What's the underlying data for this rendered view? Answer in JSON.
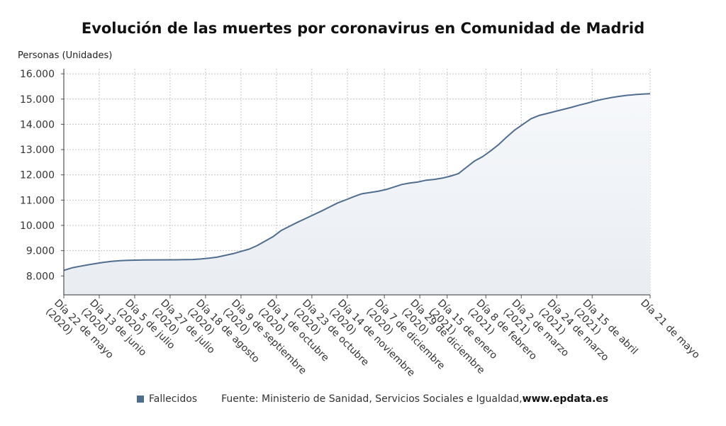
{
  "chart_data": {
    "type": "area",
    "title": "Evolución de las muertes por coronavirus en Comunidad de Madrid",
    "ylabel": "Personas (Unidades)",
    "xlabel": "",
    "ylim": [
      7250,
      16200
    ],
    "yticks": [
      8000,
      9000,
      10000,
      11000,
      12000,
      13000,
      14000,
      15000,
      16000
    ],
    "ytick_labels": [
      "8.000",
      "9.000",
      "10.000",
      "11.000",
      "12.000",
      "13.000",
      "14.000",
      "15.000",
      "16.000"
    ],
    "x_range_days": [
      0,
      364
    ],
    "xticks": [
      {
        "day": 0,
        "line1": "Día 22 de mayo",
        "line2": "(2020)"
      },
      {
        "day": 22,
        "line1": "Día 13 de junio",
        "line2": "(2020)"
      },
      {
        "day": 44,
        "line1": "Día 5 de julio",
        "line2": "(2020)"
      },
      {
        "day": 66,
        "line1": "Día 27 de julio",
        "line2": "(2020)"
      },
      {
        "day": 88,
        "line1": "Día 18 de agosto",
        "line2": "(2020)"
      },
      {
        "day": 110,
        "line1": "Día 9 de septiembre",
        "line2": "(2020)"
      },
      {
        "day": 132,
        "line1": "Día 1 de octubre",
        "line2": "(2020)"
      },
      {
        "day": 154,
        "line1": "Día 23 de octubre",
        "line2": "(2020)"
      },
      {
        "day": 176,
        "line1": "Día 14 de noviembre",
        "line2": "(2020)"
      },
      {
        "day": 199,
        "line1": "Día 7 de diciembre",
        "line2": "(2020)"
      },
      {
        "day": 221,
        "line1": "Día 29 de diciembre",
        "line2": "(2020)"
      },
      {
        "day": 238,
        "line1": "Día 15 de enero",
        "line2": "(2021)"
      },
      {
        "day": 262,
        "line1": "Día 8 de febrero",
        "line2": "(2021)"
      },
      {
        "day": 284,
        "line1": "Día 2 de marzo",
        "line2": "(2021)"
      },
      {
        "day": 306,
        "line1": "Día 24 de marzo",
        "line2": "(2021)"
      },
      {
        "day": 328,
        "line1": "Día 15 de abril",
        "line2": "(2021)"
      },
      {
        "day": 364,
        "line1": "Día 21 de mayo",
        "line2": ""
      }
    ],
    "series": [
      {
        "name": "Fallecidos",
        "color": "#4f6d8f",
        "x_days": [
          0,
          5,
          10,
          15,
          20,
          25,
          30,
          35,
          40,
          50,
          60,
          70,
          80,
          85,
          90,
          95,
          100,
          105,
          110,
          115,
          120,
          125,
          130,
          135,
          140,
          145,
          150,
          155,
          160,
          165,
          170,
          175,
          180,
          185,
          190,
          195,
          200,
          205,
          210,
          215,
          220,
          225,
          230,
          235,
          240,
          245,
          250,
          255,
          260,
          265,
          270,
          275,
          280,
          285,
          290,
          295,
          300,
          305,
          310,
          315,
          320,
          325,
          330,
          335,
          340,
          345,
          350,
          355,
          360,
          364
        ],
        "values": [
          8220,
          8320,
          8380,
          8440,
          8490,
          8540,
          8580,
          8605,
          8620,
          8630,
          8635,
          8640,
          8650,
          8670,
          8700,
          8740,
          8810,
          8880,
          8970,
          9060,
          9200,
          9380,
          9560,
          9800,
          9960,
          10120,
          10270,
          10420,
          10570,
          10730,
          10890,
          11010,
          11140,
          11250,
          11300,
          11350,
          11420,
          11520,
          11620,
          11680,
          11720,
          11790,
          11820,
          11870,
          11950,
          12050,
          12300,
          12550,
          12720,
          12950,
          13200,
          13500,
          13780,
          14000,
          14220,
          14350,
          14430,
          14510,
          14590,
          14670,
          14760,
          14840,
          14930,
          15000,
          15060,
          15110,
          15150,
          15180,
          15200,
          15210
        ]
      }
    ],
    "legend_position": "bottom",
    "grid": true
  },
  "legend": {
    "series_name": "Fallecidos",
    "source_text": "Fuente: Ministerio de Sanidad, Servicios Sociales e Igualdad, ",
    "source_url": "www.epdata.es"
  }
}
